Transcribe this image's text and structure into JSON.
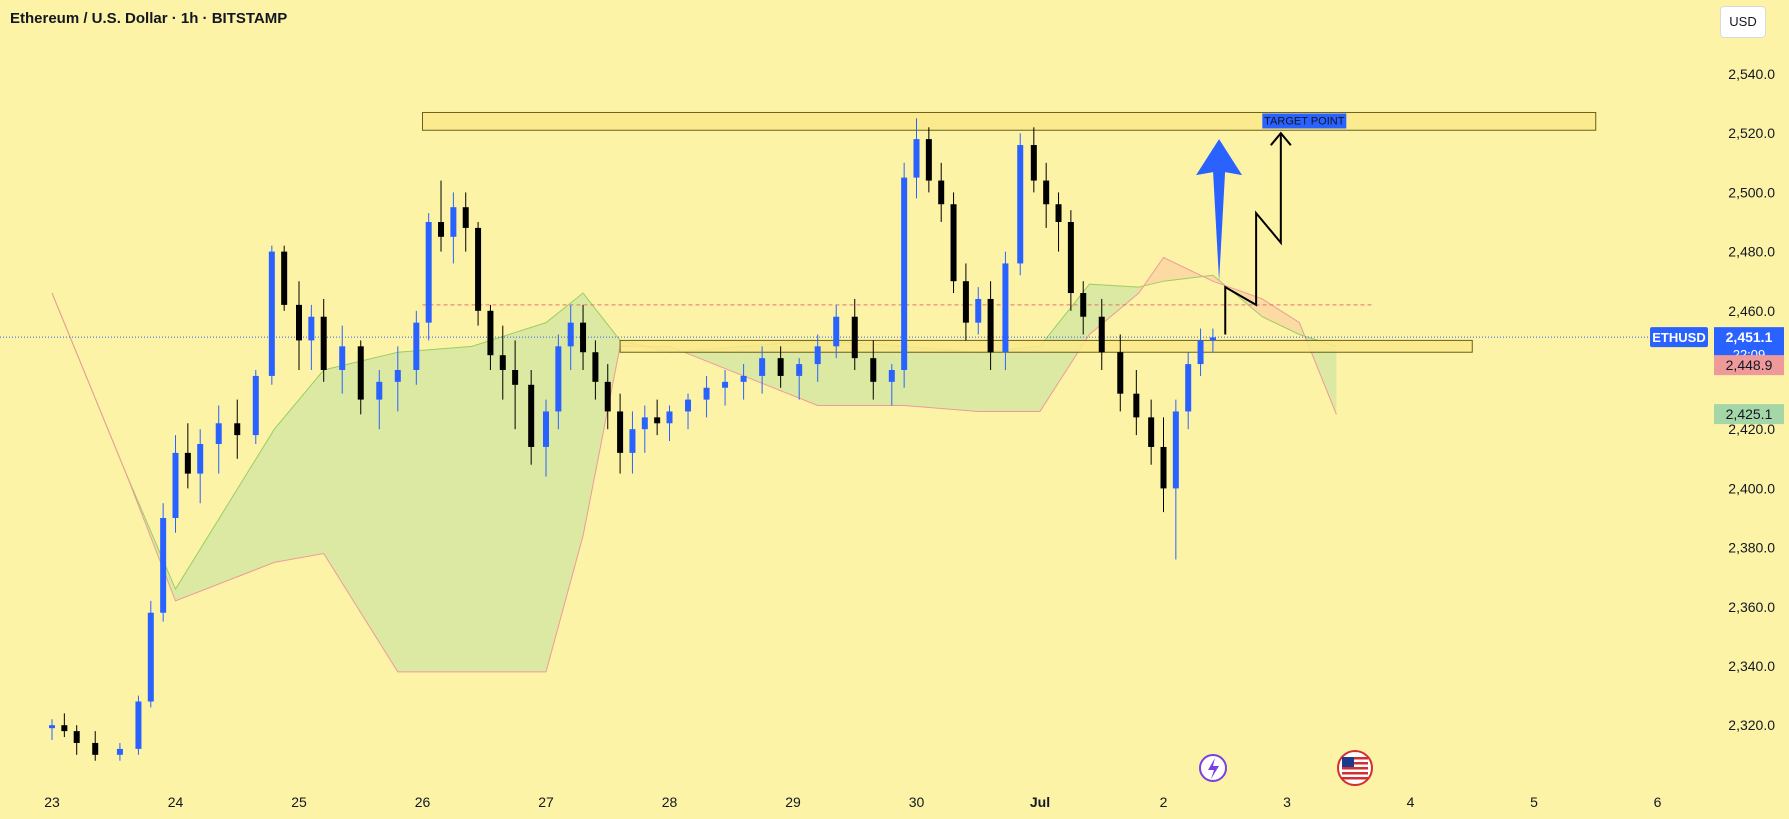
{
  "header": {
    "title": "Ethereum / U.S. Dollar · 1h · BITSTAMP",
    "currency_button": "USD"
  },
  "colors": {
    "background": "#fdf3a6",
    "bull_candle": "#2962ff",
    "bear_candle": "#000000",
    "cloud_bull": "#cfe6a0",
    "cloud_bear": "#fbd3a0",
    "zone": "#fbe98a",
    "arrow": "#2962ff",
    "price_tag": "#2962ff",
    "tag_red": "#ef9a9a",
    "tag_green": "#a5d6a7"
  },
  "chart_data": {
    "type": "candlestick",
    "symbol": "ETHUSD",
    "timeframe": "1h",
    "ylim": [
      2305,
      2550
    ],
    "y_ticks": [
      2540.0,
      2520.0,
      2500.0,
      2480.0,
      2460.0,
      2440.0,
      2420.0,
      2400.0,
      2380.0,
      2360.0,
      2340.0,
      2320.0
    ],
    "y_tick_labels": [
      "2,540.0",
      "2,520.0",
      "2,500.0",
      "2,480.0",
      "2,460.0",
      "",
      "2,420.0",
      "2,400.0",
      "2,380.0",
      "2,360.0",
      "2,340.0",
      "2,320.0"
    ],
    "x_labels": [
      "23",
      "24",
      "25",
      "26",
      "27",
      "28",
      "29",
      "30",
      "Jul",
      "2",
      "3",
      "4",
      "5",
      "6"
    ],
    "last_price": 2451.1,
    "last_price_label": "2,451.1",
    "countdown": "22:09",
    "symbol_label": "ETHUSD",
    "price_labels": [
      {
        "value": 2448.9,
        "text": "2,448.9",
        "color": "red"
      },
      {
        "value": 2425.1,
        "text": "2,425.1",
        "color": "green"
      }
    ],
    "red_dashed_level": 2462,
    "zones": [
      {
        "name": "resistance",
        "from_day": 26.0,
        "to_day": 35.5,
        "low": 2521,
        "high": 2527,
        "label": "TARGET POINT"
      },
      {
        "name": "support",
        "from_day": 27.6,
        "to_day": 34.5,
        "low": 2446,
        "high": 2450
      }
    ],
    "projection_path": [
      [
        32.5,
        2452
      ],
      [
        32.5,
        2468
      ],
      [
        32.75,
        2462
      ],
      [
        32.75,
        2493
      ],
      [
        32.95,
        2483
      ],
      [
        32.95,
        2520
      ]
    ],
    "blue_arrow": {
      "day": 32.45,
      "base": 2470,
      "tip": 2518
    },
    "candles": [
      [
        23.0,
        2319,
        2322,
        2315,
        2320
      ],
      [
        23.1,
        2320,
        2324,
        2316,
        2318
      ],
      [
        23.2,
        2318,
        2320,
        2310,
        2314
      ],
      [
        23.35,
        2314,
        2318,
        2308,
        2310
      ],
      [
        23.55,
        2310,
        2314,
        2308,
        2312
      ],
      [
        23.7,
        2312,
        2330,
        2310,
        2328
      ],
      [
        23.8,
        2328,
        2362,
        2326,
        2358
      ],
      [
        23.9,
        2358,
        2395,
        2355,
        2390
      ],
      [
        24.0,
        2390,
        2418,
        2385,
        2412
      ],
      [
        24.1,
        2412,
        2422,
        2400,
        2405
      ],
      [
        24.2,
        2405,
        2420,
        2395,
        2415
      ],
      [
        24.35,
        2415,
        2428,
        2405,
        2422
      ],
      [
        24.5,
        2422,
        2430,
        2410,
        2418
      ],
      [
        24.65,
        2418,
        2440,
        2415,
        2438
      ],
      [
        24.78,
        2438,
        2482,
        2435,
        2480
      ],
      [
        24.88,
        2480,
        2482,
        2460,
        2462
      ],
      [
        25.0,
        2462,
        2470,
        2440,
        2450
      ],
      [
        25.1,
        2450,
        2462,
        2440,
        2458
      ],
      [
        25.2,
        2458,
        2464,
        2436,
        2440
      ],
      [
        25.35,
        2440,
        2455,
        2432,
        2448
      ],
      [
        25.5,
        2448,
        2450,
        2425,
        2430
      ],
      [
        25.65,
        2430,
        2440,
        2420,
        2436
      ],
      [
        25.8,
        2436,
        2448,
        2426,
        2440
      ],
      [
        25.95,
        2440,
        2460,
        2435,
        2456
      ],
      [
        26.05,
        2456,
        2493,
        2450,
        2490
      ],
      [
        26.15,
        2490,
        2504,
        2480,
        2485
      ],
      [
        26.25,
        2485,
        2500,
        2476,
        2495
      ],
      [
        26.35,
        2495,
        2500,
        2480,
        2488
      ],
      [
        26.45,
        2488,
        2490,
        2455,
        2460
      ],
      [
        26.55,
        2460,
        2462,
        2440,
        2445
      ],
      [
        26.65,
        2445,
        2455,
        2430,
        2440
      ],
      [
        26.75,
        2440,
        2450,
        2420,
        2435
      ],
      [
        26.88,
        2435,
        2440,
        2408,
        2414
      ],
      [
        27.0,
        2414,
        2430,
        2404,
        2426
      ],
      [
        27.1,
        2426,
        2452,
        2420,
        2448
      ],
      [
        27.2,
        2448,
        2462,
        2440,
        2456
      ],
      [
        27.3,
        2456,
        2462,
        2440,
        2446
      ],
      [
        27.4,
        2446,
        2450,
        2430,
        2436
      ],
      [
        27.5,
        2436,
        2442,
        2420,
        2426
      ],
      [
        27.6,
        2426,
        2432,
        2405,
        2412
      ],
      [
        27.7,
        2412,
        2426,
        2405,
        2420
      ],
      [
        27.8,
        2420,
        2428,
        2412,
        2424
      ],
      [
        27.9,
        2424,
        2430,
        2418,
        2422
      ],
      [
        28.0,
        2422,
        2428,
        2416,
        2426
      ],
      [
        28.15,
        2426,
        2432,
        2420,
        2430
      ],
      [
        28.3,
        2430,
        2438,
        2424,
        2434
      ],
      [
        28.45,
        2434,
        2440,
        2428,
        2436
      ],
      [
        28.6,
        2436,
        2442,
        2430,
        2438
      ],
      [
        28.75,
        2438,
        2448,
        2432,
        2444
      ],
      [
        28.9,
        2444,
        2448,
        2434,
        2438
      ],
      [
        29.05,
        2438,
        2444,
        2430,
        2442
      ],
      [
        29.2,
        2442,
        2452,
        2436,
        2448
      ],
      [
        29.35,
        2448,
        2462,
        2444,
        2458
      ],
      [
        29.5,
        2458,
        2464,
        2440,
        2444
      ],
      [
        29.65,
        2444,
        2450,
        2430,
        2436
      ],
      [
        29.8,
        2436,
        2442,
        2428,
        2440
      ],
      [
        29.9,
        2440,
        2510,
        2434,
        2505
      ],
      [
        30.0,
        2505,
        2525,
        2498,
        2518
      ],
      [
        30.1,
        2518,
        2522,
        2500,
        2504
      ],
      [
        30.2,
        2504,
        2510,
        2490,
        2496
      ],
      [
        30.3,
        2496,
        2500,
        2466,
        2470
      ],
      [
        30.4,
        2470,
        2476,
        2450,
        2456
      ],
      [
        30.5,
        2456,
        2468,
        2452,
        2464
      ],
      [
        30.6,
        2464,
        2470,
        2440,
        2446
      ],
      [
        30.72,
        2446,
        2480,
        2440,
        2476
      ],
      [
        30.84,
        2476,
        2520,
        2472,
        2516
      ],
      [
        30.95,
        2516,
        2522,
        2500,
        2504
      ],
      [
        31.05,
        2504,
        2510,
        2488,
        2496
      ],
      [
        31.15,
        2496,
        2500,
        2480,
        2490
      ],
      [
        31.25,
        2490,
        2494,
        2460,
        2466
      ],
      [
        31.35,
        2466,
        2470,
        2452,
        2458
      ],
      [
        31.5,
        2458,
        2464,
        2440,
        2446
      ],
      [
        31.65,
        2446,
        2452,
        2426,
        2432
      ],
      [
        31.78,
        2432,
        2440,
        2418,
        2424
      ],
      [
        31.9,
        2424,
        2430,
        2408,
        2414
      ],
      [
        32.0,
        2414,
        2424,
        2392,
        2400
      ],
      [
        32.1,
        2400,
        2430,
        2376,
        2426
      ],
      [
        32.2,
        2426,
        2446,
        2420,
        2442
      ],
      [
        32.3,
        2442,
        2454,
        2438,
        2450
      ],
      [
        32.4,
        2450,
        2454,
        2446,
        2451
      ]
    ],
    "cloud": [
      [
        23.0,
        2466,
        2466
      ],
      [
        23.6,
        2405,
        2405
      ],
      [
        24.0,
        2366,
        2362
      ],
      [
        24.8,
        2420,
        2375
      ],
      [
        25.2,
        2440,
        2378
      ],
      [
        25.8,
        2446,
        2338
      ],
      [
        26.4,
        2448,
        2338
      ],
      [
        27.0,
        2456,
        2338
      ],
      [
        27.3,
        2466,
        2384
      ],
      [
        27.6,
        2450,
        2448
      ],
      [
        28.0,
        2446,
        2448
      ],
      [
        28.6,
        2448,
        2438
      ],
      [
        29.2,
        2450,
        2428
      ],
      [
        29.9,
        2448,
        2428
      ],
      [
        30.5,
        2446,
        2426
      ],
      [
        31.0,
        2448,
        2426
      ],
      [
        31.4,
        2469,
        2452
      ],
      [
        31.8,
        2468,
        2466
      ],
      [
        32.0,
        2470,
        2478
      ],
      [
        32.4,
        2472,
        2470
      ],
      [
        32.8,
        2458,
        2464
      ],
      [
        33.1,
        2452,
        2456
      ],
      [
        33.4,
        2448,
        2425
      ]
    ]
  }
}
